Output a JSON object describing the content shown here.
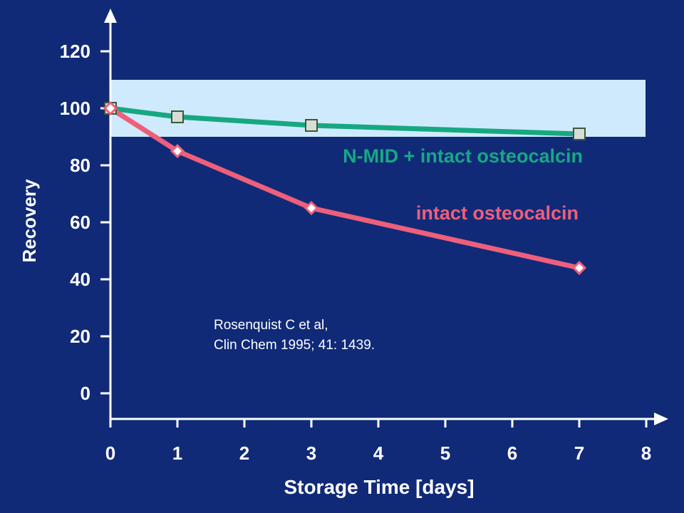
{
  "chart_data": {
    "type": "line",
    "xlabel": "Storage Time [days]",
    "ylabel": "Recovery",
    "xlim": [
      0,
      8
    ],
    "ylim": [
      0,
      120
    ],
    "x_ticks": [
      "0",
      "1",
      "2",
      "3",
      "4",
      "5",
      "6",
      "7",
      "8"
    ],
    "y_ticks": [
      "0",
      "20",
      "40",
      "60",
      "80",
      "100",
      "120"
    ],
    "reference_band": {
      "from": 90,
      "to": 110,
      "color": "#cfeafc"
    },
    "series": [
      {
        "name": "N-MID + intact osteocalcin",
        "color": "#17a882",
        "marker": "square",
        "x": [
          0,
          1,
          3,
          7
        ],
        "y": [
          100,
          97,
          94,
          91
        ]
      },
      {
        "name": "intact osteocalcin",
        "color": "#ee5f7b",
        "marker": "diamond",
        "x": [
          0,
          1,
          3,
          7
        ],
        "y": [
          100,
          85,
          65,
          44
        ]
      }
    ],
    "annotation": [
      "Rosenquist C et al,",
      "Clin Chem 1995; 41: 1439."
    ],
    "colors": {
      "background": "#102a78",
      "axis": "#ffffff"
    }
  }
}
